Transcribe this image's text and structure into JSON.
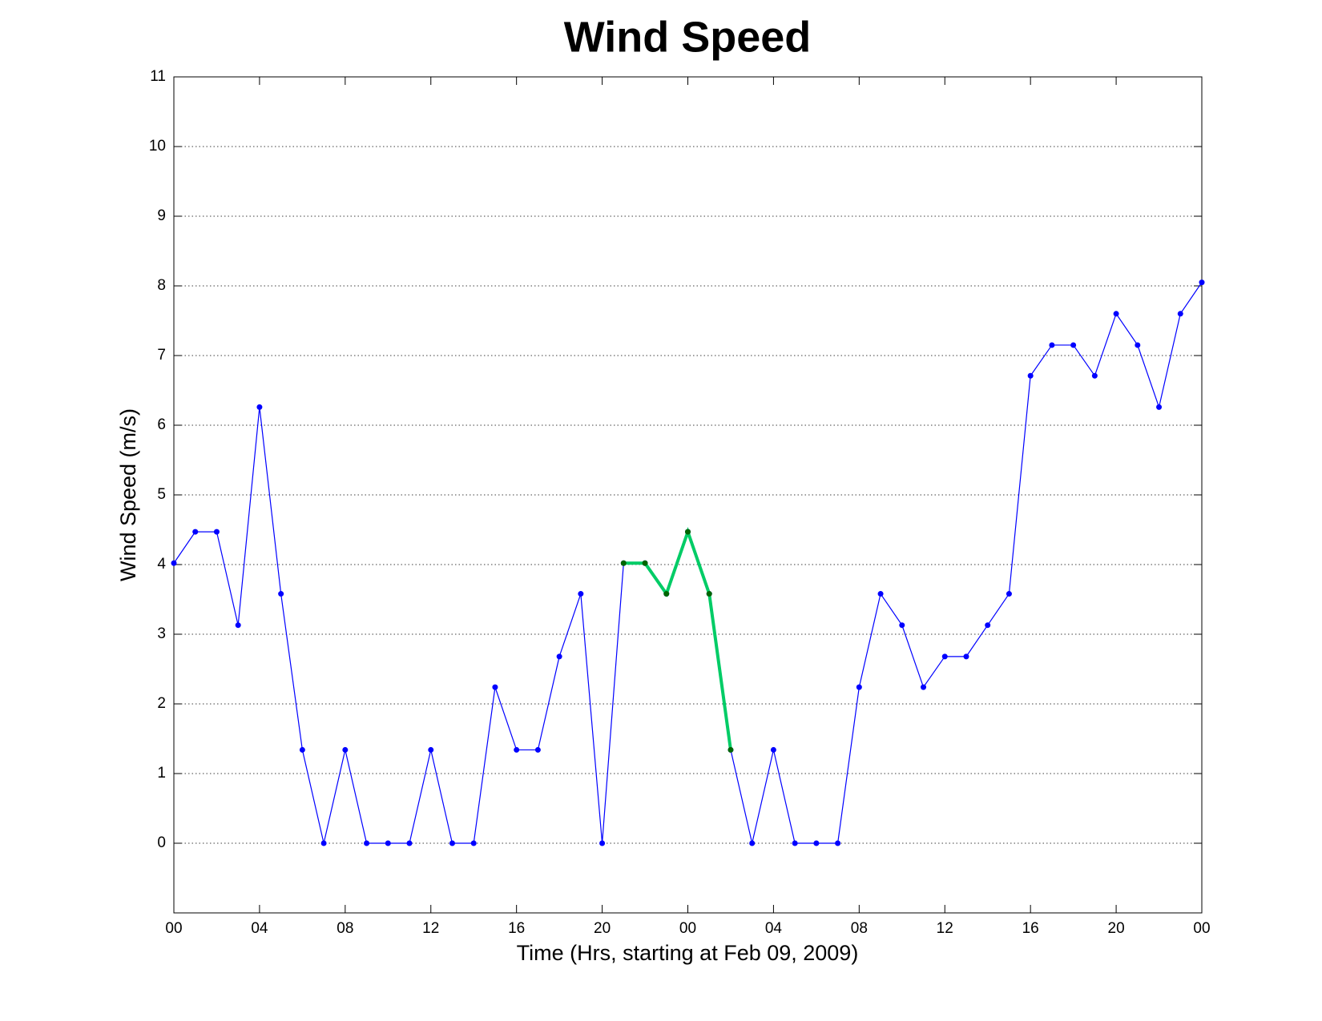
{
  "chart_data": {
    "type": "line",
    "title": "Wind Speed",
    "x_label": "Time (Hrs, starting at Feb 09, 2009)",
    "y_label": "Wind Speed (m/s)",
    "x": [
      0,
      1,
      2,
      3,
      4,
      5,
      6,
      7,
      8,
      9,
      10,
      11,
      12,
      13,
      14,
      15,
      16,
      17,
      18,
      19,
      20,
      21,
      22,
      23,
      24,
      25,
      26,
      27,
      28,
      29,
      30,
      31,
      32,
      33,
      34,
      35,
      36,
      37,
      38,
      39,
      40,
      41,
      42,
      43,
      44,
      45,
      46,
      47,
      48
    ],
    "series": [
      {
        "color": "#0000ff",
        "marker_color": "#0000ff",
        "line_width": 1.2,
        "values": [
          4.02,
          4.47,
          4.47,
          3.13,
          6.26,
          3.58,
          1.34,
          0,
          1.34,
          0,
          0,
          0,
          1.34,
          0,
          0,
          2.24,
          1.34,
          1.34,
          2.68,
          3.58,
          0,
          4.02,
          4.02,
          3.58,
          4.47,
          3.58,
          1.34,
          0,
          1.34,
          0,
          0,
          0,
          2.24,
          3.58,
          3.13,
          2.24,
          2.68,
          2.68,
          3.13,
          3.58,
          6.71,
          7.15,
          7.15,
          6.71,
          7.6,
          7.15,
          6.26,
          7.6,
          8.05
        ]
      },
      {
        "color": "#00cc66",
        "marker_color": "#006600",
        "line_width": 4,
        "x": [
          21,
          22,
          23,
          24,
          25,
          26
        ],
        "values": [
          4.02,
          4.02,
          3.58,
          4.47,
          3.58,
          1.34
        ]
      }
    ],
    "xlim": [
      0,
      48
    ],
    "xticks": [
      {
        "value": 0,
        "label": "00"
      },
      {
        "value": 4,
        "label": "04"
      },
      {
        "value": 8,
        "label": "08"
      },
      12,
      16,
      20,
      {
        "value": 24,
        "label": "00"
      },
      {
        "value": 28,
        "label": "04"
      },
      {
        "value": 32,
        "label": "08"
      },
      {
        "value": 36,
        "label": "12"
      },
      {
        "value": 40,
        "label": "16"
      },
      {
        "value": 44,
        "label": "20"
      },
      {
        "value": 48,
        "label": "00"
      }
    ],
    "ylim": [
      -1,
      11
    ],
    "yticks": [
      0,
      1,
      2,
      3,
      4,
      5,
      6,
      7,
      8,
      9,
      10,
      11
    ],
    "grid": true
  }
}
